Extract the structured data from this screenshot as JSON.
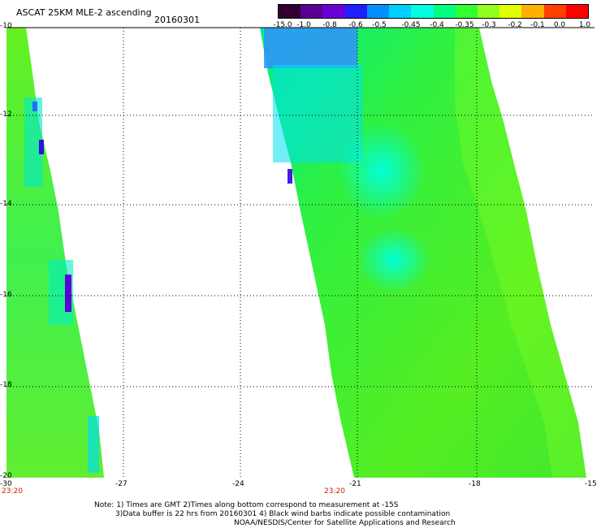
{
  "header": {
    "title": "ASCAT 25KM MLE-2 ascending",
    "date": "20160301"
  },
  "colorbar": {
    "ticks": [
      "-15.0",
      "-1.0",
      "-0.8",
      "-0.6",
      "-0.5",
      "-0.45",
      "-0.4",
      "-0.35",
      "-0.3",
      "-0.2",
      "-0.1",
      "0.0",
      "1.0"
    ],
    "colors": [
      "#300030",
      "#5a0090",
      "#6a00d8",
      "#2020ff",
      "#0090ff",
      "#00d0ff",
      "#00ffe0",
      "#00ff80",
      "#30ff30",
      "#90ff20",
      "#e0ff00",
      "#ffb000",
      "#ff4000",
      "#ff0000"
    ]
  },
  "axes": {
    "y_labels": [
      "-10",
      "-12",
      "-14",
      "-16",
      "-18",
      "-20"
    ],
    "x_labels": [
      "-30",
      "-27",
      "-24",
      "-21",
      "-18",
      "-15"
    ],
    "time_labels": [
      "23:20",
      "23:20"
    ]
  },
  "notes": {
    "line1": "Note: 1) Times are GMT 2)Times along bottom correspond to measurement at -15S",
    "line2": "3)Data buffer is 22 hrs from 20160301 4) Black wind barbs indicate possible contamination",
    "line3": "NOAA/NESDIS/Center for Satellite Applications and Research"
  },
  "colors": {
    "swath_main": "#55ee22",
    "swath_light": "#88ff22",
    "swath_cyan": "#00ffe0",
    "swath_blue": "#2080ff",
    "swath_purple": "#5a00e0",
    "grid": "#000000"
  }
}
